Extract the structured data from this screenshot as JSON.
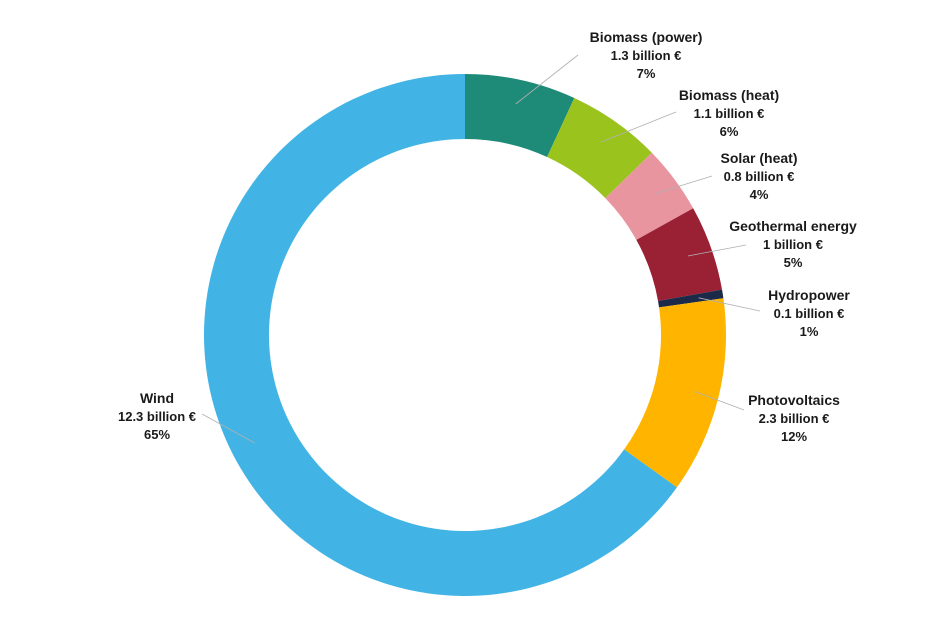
{
  "chart_data": {
    "type": "pie",
    "variant": "donut",
    "start_angle_deg": 0,
    "direction": "clockwise",
    "slices": [
      {
        "name": "Biomass (power)",
        "value_label": "1.3 billion €",
        "pct_label": "7%",
        "value": 1.3,
        "color": "#1e8a78"
      },
      {
        "name": "Biomass (heat)",
        "value_label": "1.1 billion €",
        "pct_label": "6%",
        "value": 1.1,
        "color": "#9bc31e"
      },
      {
        "name": "Solar (heat)",
        "value_label": "0.8 billion €",
        "pct_label": "4%",
        "value": 0.8,
        "color": "#e895a0"
      },
      {
        "name": "Geothermal energy",
        "value_label": "1 billion €",
        "pct_label": "5%",
        "value": 1.0,
        "color": "#9a2033"
      },
      {
        "name": "Hydropower",
        "value_label": "0.1 billion €",
        "pct_label": "1%",
        "value": 0.1,
        "color": "#1b2a48"
      },
      {
        "name": "Photovoltaics",
        "value_label": "2.3 billion €",
        "pct_label": "12%",
        "value": 2.3,
        "color": "#ffb500"
      },
      {
        "name": "Wind",
        "value_label": "12.3 billion €",
        "pct_label": "65%",
        "value": 12.3,
        "color": "#41b4e5"
      }
    ]
  }
}
